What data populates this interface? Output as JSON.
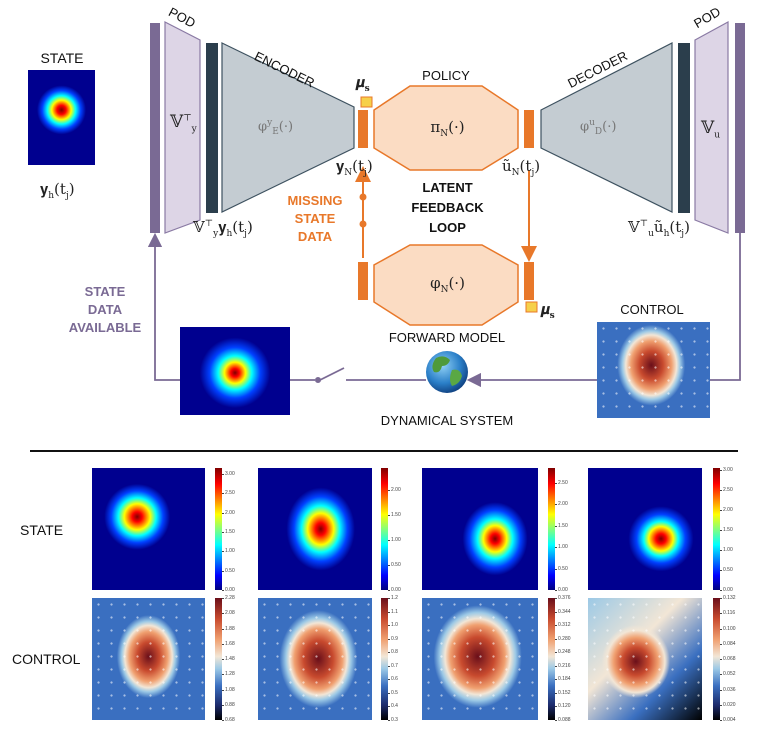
{
  "top": {
    "state_label": "STATE",
    "state_var": {
      "base": "𝐲",
      "sub": "h",
      "arg": "(t",
      "argsub": "j",
      "close": ")"
    },
    "pod_left_label": "POD",
    "pod_left_matrix": {
      "base": "𝕍",
      "sup": "⊤",
      "sub": "y"
    },
    "pod_left_output": {
      "base": "𝕍",
      "sup": "⊤",
      "sub": "y",
      "vec": "𝐲",
      "vecsub": "h",
      "arg": "(t",
      "argsub": "j",
      "close": ")"
    },
    "encoder_label": "ENCODER",
    "encoder_fn": {
      "base": "φ",
      "sup": "y",
      "sub": "E",
      "arg": "(·)"
    },
    "mu_s_top": {
      "base": "𝝁",
      "sub": "s"
    },
    "latent_state": {
      "base": "𝐲",
      "sub": "N",
      "arg": "(t",
      "argsub": "j",
      "close": ")"
    },
    "policy_label": "POLICY",
    "policy_fn": {
      "base": "π",
      "sub": "N",
      "arg": "(·)"
    },
    "latent_control": {
      "base": "ũ",
      "sub": "N",
      "arg": "(t",
      "argsub": "j",
      "close": ")"
    },
    "decoder_label": "DECODER",
    "decoder_fn": {
      "base": "φ",
      "sup": "u",
      "sub": "D",
      "arg": "(·)"
    },
    "pod_right_label": "POD",
    "pod_right_matrix": {
      "base": "𝕍",
      "sub": "u"
    },
    "pod_right_input": {
      "base": "𝕍",
      "sup": "⊤",
      "sub": "u",
      "vec": "ũ",
      "vecsub": "h",
      "arg": "(t",
      "argsub": "j",
      "close": ")"
    },
    "missing_state_data": [
      "MISSING",
      "STATE",
      "DATA"
    ],
    "latent_feedback_loop": [
      "LATENT",
      "FEEDBACK",
      "LOOP"
    ],
    "forward_fn": {
      "base": "φ",
      "sub": "N",
      "arg": "(·)"
    },
    "mu_s_bottom": {
      "base": "𝝁",
      "sub": "s"
    },
    "forward_model_label": "FORWARD MODEL",
    "control_label": "CONTROL",
    "dynamical_system_label": "DYNAMICAL SYSTEM",
    "state_data_available": [
      "STATE",
      "DATA",
      "AVAILABLE"
    ]
  },
  "bottom": {
    "row_labels": [
      "STATE",
      "CONTROL"
    ],
    "state_colorbars": [
      {
        "range": [
          0,
          3.15
        ],
        "ticks": [
          "0.00",
          "0.50",
          "1.00",
          "1.50",
          "2.00",
          "2.50",
          "3.00"
        ]
      },
      {
        "range": [
          0,
          2.45
        ],
        "ticks": [
          "0.00",
          "0.50",
          "1.00",
          "1.50",
          "2.00"
        ]
      },
      {
        "range": [
          0,
          2.85
        ],
        "ticks": [
          "0.00",
          "0.50",
          "1.00",
          "1.50",
          "2.00",
          "2.50"
        ]
      },
      {
        "range": [
          0,
          3.05
        ],
        "ticks": [
          "0.00",
          "0.50",
          "1.00",
          "1.50",
          "2.00",
          "2.50",
          "3.00"
        ]
      }
    ],
    "control_colorbars": [
      {
        "range": [
          0.68,
          2.28
        ],
        "ticks": [
          "0.68",
          "0.88",
          "1.08",
          "1.28",
          "1.48",
          "1.68",
          "1.88",
          "2.08",
          "2.28"
        ]
      },
      {
        "range": [
          0.3,
          1.2
        ],
        "ticks": [
          "0.3",
          "0.4",
          "0.5",
          "0.6",
          "0.7",
          "0.8",
          "0.9",
          "1.0",
          "1.1",
          "1.2"
        ]
      },
      {
        "range": [
          0.088,
          0.376
        ],
        "ticks": [
          "0.088",
          "0.120",
          "0.152",
          "0.184",
          "0.216",
          "0.248",
          "0.280",
          "0.312",
          "0.344",
          "0.376"
        ]
      },
      {
        "range": [
          0.004,
          0.132
        ],
        "ticks": [
          "0.004",
          "0.020",
          "0.036",
          "0.052",
          "0.068",
          "0.084",
          "0.100",
          "0.116",
          "0.132"
        ]
      }
    ],
    "state_colormap": "jet",
    "control_colormap": "diverging dark-blue/white/dark-red"
  },
  "colors": {
    "orange": "#e8782a",
    "purple": "#7a6a94",
    "pod_fill": "#ddd5e6",
    "dark_bar": "#2b3e4c",
    "net_fill": "#c4ccd2",
    "orange_fill": "#fbdcc3",
    "yellow": "#f6d04a"
  }
}
